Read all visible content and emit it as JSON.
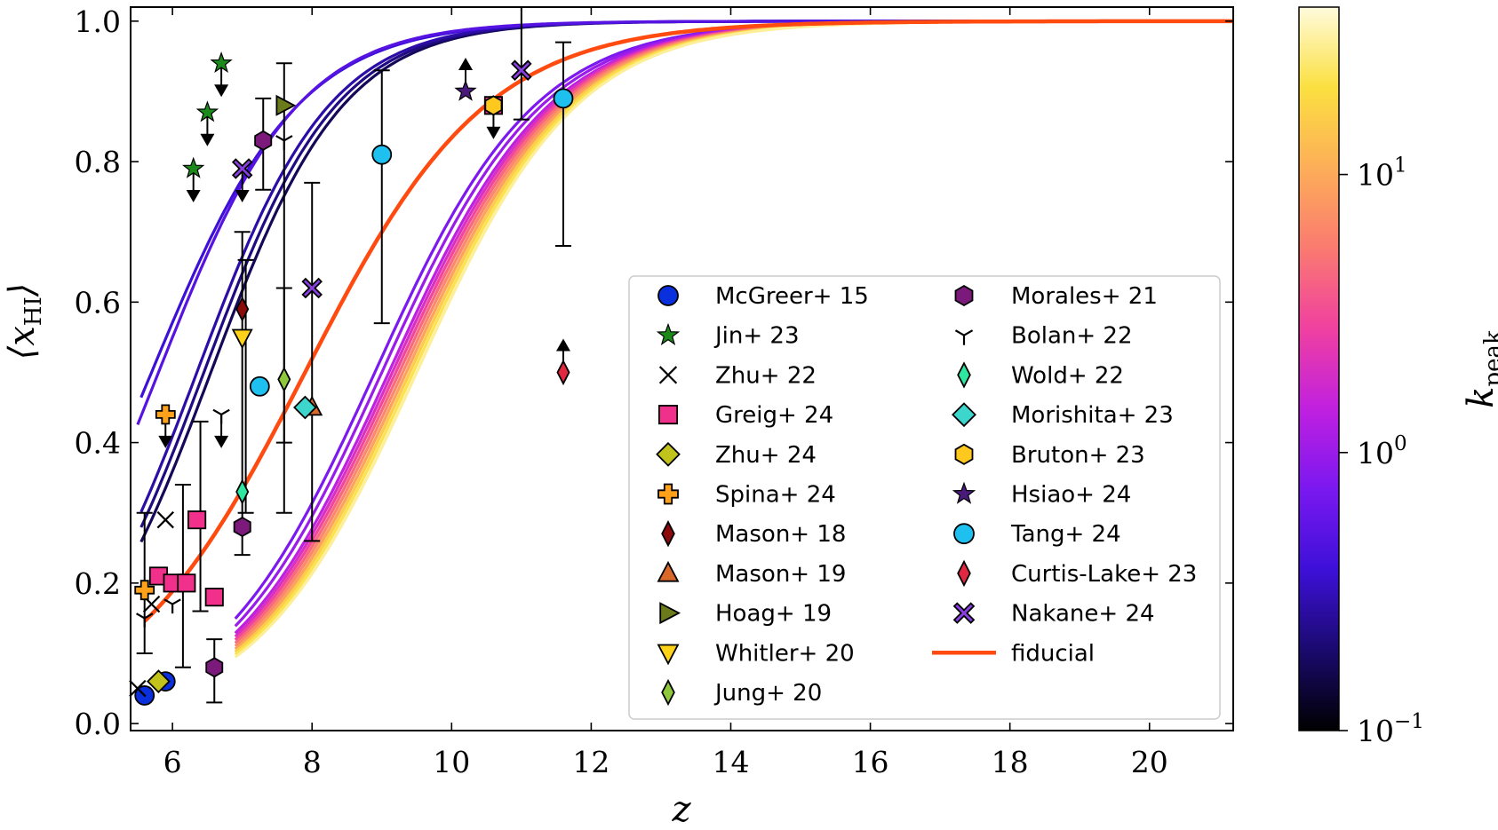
{
  "chart_data": {
    "type": "line",
    "xlabel": "z",
    "ylabel": "⟨x_HI⟩",
    "colorbar_label": "k_peak",
    "xlim": [
      5.4,
      21.2
    ],
    "ylim": [
      -0.01,
      1.02
    ],
    "x_ticks": [
      6,
      8,
      10,
      12,
      14,
      16,
      18,
      20
    ],
    "y_ticks": [
      0.0,
      0.2,
      0.4,
      0.6,
      0.8,
      1.0
    ],
    "y_tick_labels": [
      "0.0",
      "0.2",
      "0.4",
      "0.6",
      "0.8",
      "1.0"
    ],
    "colorbar": {
      "scale": "log",
      "range": [
        0.1,
        40
      ],
      "ticks": [
        {
          "value": 0.1,
          "base": "10",
          "exp": "−1"
        },
        {
          "value": 1,
          "base": "10",
          "exp": "0"
        },
        {
          "value": 10,
          "base": "10",
          "exp": "1"
        }
      ],
      "colormap": [
        "#000000",
        "#1a0a6e",
        "#3d10d8",
        "#7a18f0",
        "#c020e0",
        "#f040a0",
        "#fa7a70",
        "#fdae58",
        "#fbe040",
        "#fffbdc"
      ]
    },
    "model_curves": [
      {
        "k_peak": 0.17,
        "z_mid": 6.55,
        "width": 0.95,
        "z_start": 5.55
      },
      {
        "k_peak": 0.22,
        "z_mid": 6.45,
        "width": 0.95,
        "z_start": 5.55
      },
      {
        "k_peak": 0.28,
        "z_mid": 6.35,
        "width": 0.95,
        "z_start": 5.55
      },
      {
        "k_peak": 0.38,
        "z_mid": 5.7,
        "width": 1.05,
        "z_start": 5.55
      },
      {
        "k_peak": 0.5,
        "z_mid": 5.8,
        "width": 1.0,
        "z_start": 5.5
      },
      {
        "k_peak": 0.75,
        "z_mid": 8.9,
        "width": 1.15,
        "z_start": 6.9
      },
      {
        "k_peak": 1.0,
        "z_mid": 9.0,
        "width": 1.15,
        "z_start": 6.9
      },
      {
        "k_peak": 1.4,
        "z_mid": 9.1,
        "width": 1.15,
        "z_start": 6.9
      },
      {
        "k_peak": 2.0,
        "z_mid": 9.15,
        "width": 1.15,
        "z_start": 6.9
      },
      {
        "k_peak": 3.0,
        "z_mid": 9.2,
        "width": 1.15,
        "z_start": 6.9
      },
      {
        "k_peak": 4.5,
        "z_mid": 9.25,
        "width": 1.15,
        "z_start": 6.9
      },
      {
        "k_peak": 6.5,
        "z_mid": 9.3,
        "width": 1.15,
        "z_start": 6.9
      },
      {
        "k_peak": 9.0,
        "z_mid": 9.35,
        "width": 1.15,
        "z_start": 6.9
      },
      {
        "k_peak": 12.0,
        "z_mid": 9.4,
        "width": 1.15,
        "z_start": 6.9
      },
      {
        "k_peak": 16.0,
        "z_mid": 9.4,
        "width": 1.15,
        "z_start": 6.9
      },
      {
        "k_peak": 22.0,
        "z_mid": 9.45,
        "width": 1.15,
        "z_start": 6.9
      },
      {
        "k_peak": 30.0,
        "z_mid": 9.5,
        "width": 1.15,
        "z_start": 6.9
      }
    ],
    "fiducial": {
      "name": "fiducial",
      "color": "#ff4a10",
      "z_mid": 7.9,
      "width": 1.3,
      "z_start": 5.6
    },
    "series": [
      {
        "name": "McGreer+ 15",
        "marker": "circle",
        "color": "#0a2fdc",
        "points": [
          {
            "x": 5.6,
            "y": 0.04
          },
          {
            "x": 5.9,
            "y": 0.06
          }
        ]
      },
      {
        "name": "Jin+ 23",
        "marker": "star",
        "color": "#1b8a1b",
        "points": [
          {
            "x": 6.3,
            "y": 0.79,
            "upper_limit": true
          },
          {
            "x": 6.5,
            "y": 0.87,
            "upper_limit": true
          },
          {
            "x": 6.7,
            "y": 0.94,
            "upper_limit": true
          }
        ]
      },
      {
        "name": "Zhu+ 22",
        "marker": "x",
        "color": "#000000",
        "points": [
          {
            "x": 5.5,
            "y": 0.05
          },
          {
            "x": 5.7,
            "y": 0.17
          },
          {
            "x": 5.9,
            "y": 0.29
          }
        ]
      },
      {
        "name": "Greig+ 24",
        "marker": "square",
        "color": "#f0308a",
        "points": [
          {
            "x": 5.8,
            "y": 0.21
          },
          {
            "x": 6.0,
            "y": 0.2
          },
          {
            "x": 6.2,
            "y": 0.2
          },
          {
            "x": 6.35,
            "y": 0.29
          },
          {
            "x": 6.6,
            "y": 0.18
          },
          {
            "x": 10.6,
            "y": 0.88,
            "upper_limit": true
          }
        ]
      },
      {
        "name": "Zhu+ 24",
        "marker": "diamond",
        "color": "#c2c21c",
        "points": [
          {
            "x": 5.8,
            "y": 0.06
          }
        ]
      },
      {
        "name": "Spina+ 24",
        "marker": "plus",
        "color": "#ffa11a",
        "points": [
          {
            "x": 5.6,
            "y": 0.19
          },
          {
            "x": 5.9,
            "y": 0.44,
            "upper_limit": true
          }
        ]
      },
      {
        "name": "Mason+ 18",
        "marker": "thin-diamond",
        "color": "#8b0a0a",
        "points": [
          {
            "x": 7.0,
            "y": 0.59
          }
        ]
      },
      {
        "name": "Mason+ 19",
        "marker": "triangle-up",
        "color": "#d9692a",
        "points": [
          {
            "x": 8.0,
            "y": 0.45
          }
        ]
      },
      {
        "name": "Hoag+ 19",
        "marker": "triangle-right",
        "color": "#6b7a1a",
        "points": [
          {
            "x": 7.6,
            "y": 0.88
          }
        ]
      },
      {
        "name": "Whitler+ 20",
        "marker": "triangle-down",
        "color": "#ffd21a",
        "points": [
          {
            "x": 7.0,
            "y": 0.55
          }
        ]
      },
      {
        "name": "Jung+ 20",
        "marker": "thin-diamond",
        "color": "#90c83c",
        "points": [
          {
            "x": 7.6,
            "y": 0.49
          }
        ]
      },
      {
        "name": "Morales+ 21",
        "marker": "hexagon",
        "color": "#7b1a7b",
        "points": [
          {
            "x": 6.6,
            "y": 0.08
          },
          {
            "x": 7.0,
            "y": 0.28
          },
          {
            "x": 7.3,
            "y": 0.83
          }
        ]
      },
      {
        "name": "Bolan+ 22",
        "marker": "tri-down",
        "color": "#000000",
        "points": [
          {
            "x": 5.6,
            "y": 0.15
          },
          {
            "x": 6.0,
            "y": 0.17
          },
          {
            "x": 6.7,
            "y": 0.44,
            "upper_limit": true
          },
          {
            "x": 7.6,
            "y": 0.83
          }
        ]
      },
      {
        "name": "Wold+ 22",
        "marker": "thin-diamond",
        "color": "#2ee6a0",
        "points": [
          {
            "x": 7.0,
            "y": 0.33
          }
        ]
      },
      {
        "name": "Morishita+ 23",
        "marker": "diamond",
        "color": "#3cd6cc",
        "points": [
          {
            "x": 7.9,
            "y": 0.45
          }
        ]
      },
      {
        "name": "Bruton+ 23",
        "marker": "hexagon",
        "color": "#ffc81e",
        "points": [
          {
            "x": 10.6,
            "y": 0.88
          }
        ]
      },
      {
        "name": "Hsiao+ 24",
        "marker": "star",
        "color": "#4a1a7a",
        "points": [
          {
            "x": 10.2,
            "y": 0.9,
            "lower_limit": true
          }
        ]
      },
      {
        "name": "Tang+ 24",
        "marker": "circle",
        "color": "#1ec0f0",
        "points": [
          {
            "x": 7.25,
            "y": 0.48
          },
          {
            "x": 9.0,
            "y": 0.81
          },
          {
            "x": 11.6,
            "y": 0.89
          }
        ]
      },
      {
        "name": "Curtis-Lake+ 23",
        "marker": "thin-diamond",
        "color": "#e02840",
        "points": [
          {
            "x": 11.6,
            "y": 0.5,
            "lower_limit": true
          }
        ]
      },
      {
        "name": "Nakane+ 24",
        "marker": "thick-x",
        "color": "#8a3fe0",
        "points": [
          {
            "x": 7.0,
            "y": 0.79,
            "upper_limit": true
          },
          {
            "x": 8.0,
            "y": 0.62
          },
          {
            "x": 11.0,
            "y": 0.93
          }
        ]
      }
    ],
    "error_bars": [
      {
        "x": 5.6,
        "y_low": 0.1,
        "y_high": 0.3
      },
      {
        "x": 6.15,
        "y_low": 0.08,
        "y_high": 0.34
      },
      {
        "x": 6.4,
        "y_low": 0.16,
        "y_high": 0.43
      },
      {
        "x": 6.6,
        "y_low": 0.03,
        "y_high": 0.12
      },
      {
        "x": 7.0,
        "y_low": 0.24,
        "y_high": 0.7
      },
      {
        "x": 7.05,
        "y_low": 0.3,
        "y_high": 0.66
      },
      {
        "x": 7.3,
        "y_low": 0.76,
        "y_high": 0.89
      },
      {
        "x": 7.6,
        "y_low": 0.3,
        "y_high": 0.94
      },
      {
        "x": 7.6,
        "y_low": 0.4,
        "y_high": 0.62
      },
      {
        "x": 8.0,
        "y_low": 0.26,
        "y_high": 0.77
      },
      {
        "x": 9.0,
        "y_low": 0.57,
        "y_high": 0.93
      },
      {
        "x": 11.0,
        "y_low": 0.86,
        "y_high": 1.02
      },
      {
        "x": 11.6,
        "y_low": 0.68,
        "y_high": 0.97
      }
    ],
    "legend": {
      "placement": "lower-right",
      "columns": [
        [
          "McGreer+ 15",
          "Jin+ 23",
          "Zhu+ 22",
          "Greig+ 24",
          "Zhu+ 24",
          "Spina+ 24",
          "Mason+ 18",
          "Mason+ 19",
          "Hoag+ 19",
          "Whitler+ 20",
          "Jung+ 20"
        ],
        [
          "Morales+ 21",
          "Bolan+ 22",
          "Wold+ 22",
          "Morishita+ 23",
          "Bruton+ 23",
          "Hsiao+ 24",
          "Tang+ 24",
          "Curtis-Lake+ 23",
          "Nakane+ 24",
          "fiducial"
        ]
      ]
    }
  }
}
